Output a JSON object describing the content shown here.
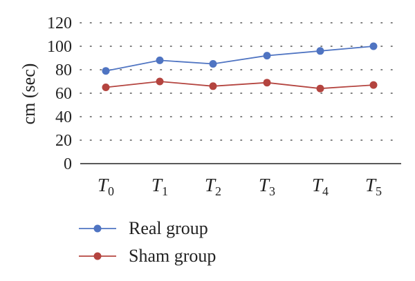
{
  "chart_data": {
    "type": "line",
    "categories": [
      {
        "base": "T",
        "sub": "0"
      },
      {
        "base": "T",
        "sub": "1"
      },
      {
        "base": "T",
        "sub": "2"
      },
      {
        "base": "T",
        "sub": "3"
      },
      {
        "base": "T",
        "sub": "4"
      },
      {
        "base": "T",
        "sub": "5"
      }
    ],
    "series": [
      {
        "name": "Real group",
        "color": "#4f74c2",
        "values": [
          79,
          88,
          85,
          92,
          96,
          100
        ]
      },
      {
        "name": "Sham group",
        "color": "#b4443f",
        "values": [
          65,
          70,
          66,
          69,
          64,
          67
        ]
      }
    ],
    "ylabel": "cm (sec)",
    "ylim": [
      0,
      120
    ],
    "yticks": [
      0,
      20,
      40,
      60,
      80,
      100,
      120
    ],
    "grid": "horizontal-dotted",
    "legend": "bottom-left"
  }
}
